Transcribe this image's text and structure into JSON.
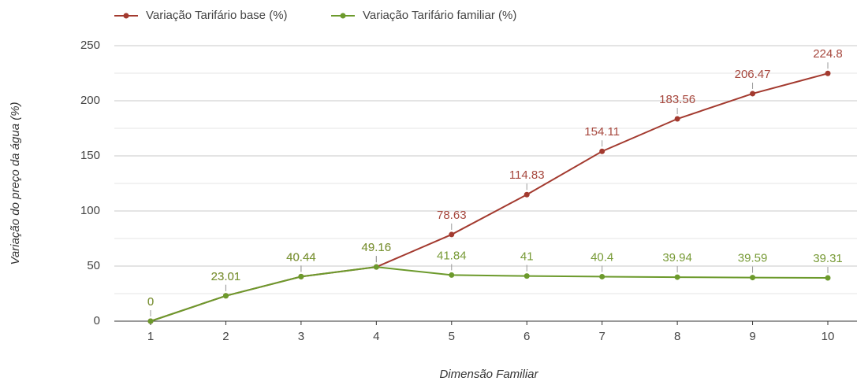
{
  "chart_data": {
    "type": "line",
    "x_label": "Dimensão Familiar",
    "y_label": "Variação do preço da água (%)",
    "categories": [
      "1",
      "2",
      "3",
      "4",
      "5",
      "6",
      "7",
      "8",
      "9",
      "10"
    ],
    "series": [
      {
        "name": "Variação Tarifário base (%)",
        "color": "#a33a2f",
        "label_color": "#a6473d",
        "values": [
          0,
          23.01,
          40.44,
          49.16,
          78.63,
          114.83,
          154.11,
          183.56,
          206.47,
          224.8
        ]
      },
      {
        "name": "Variação Tarifário familiar (%)",
        "color": "#6c9a2c",
        "label_color": "#779a36",
        "values": [
          0,
          23.01,
          40.44,
          49.16,
          41.84,
          41,
          40.4,
          39.94,
          39.59,
          39.31
        ]
      }
    ],
    "ylim": [
      0,
      250
    ],
    "yticks": [
      0,
      50,
      100,
      150,
      200,
      250
    ],
    "yminor_ticks": [
      25,
      75,
      125,
      175,
      225
    ],
    "grid": true,
    "legend": "top"
  }
}
